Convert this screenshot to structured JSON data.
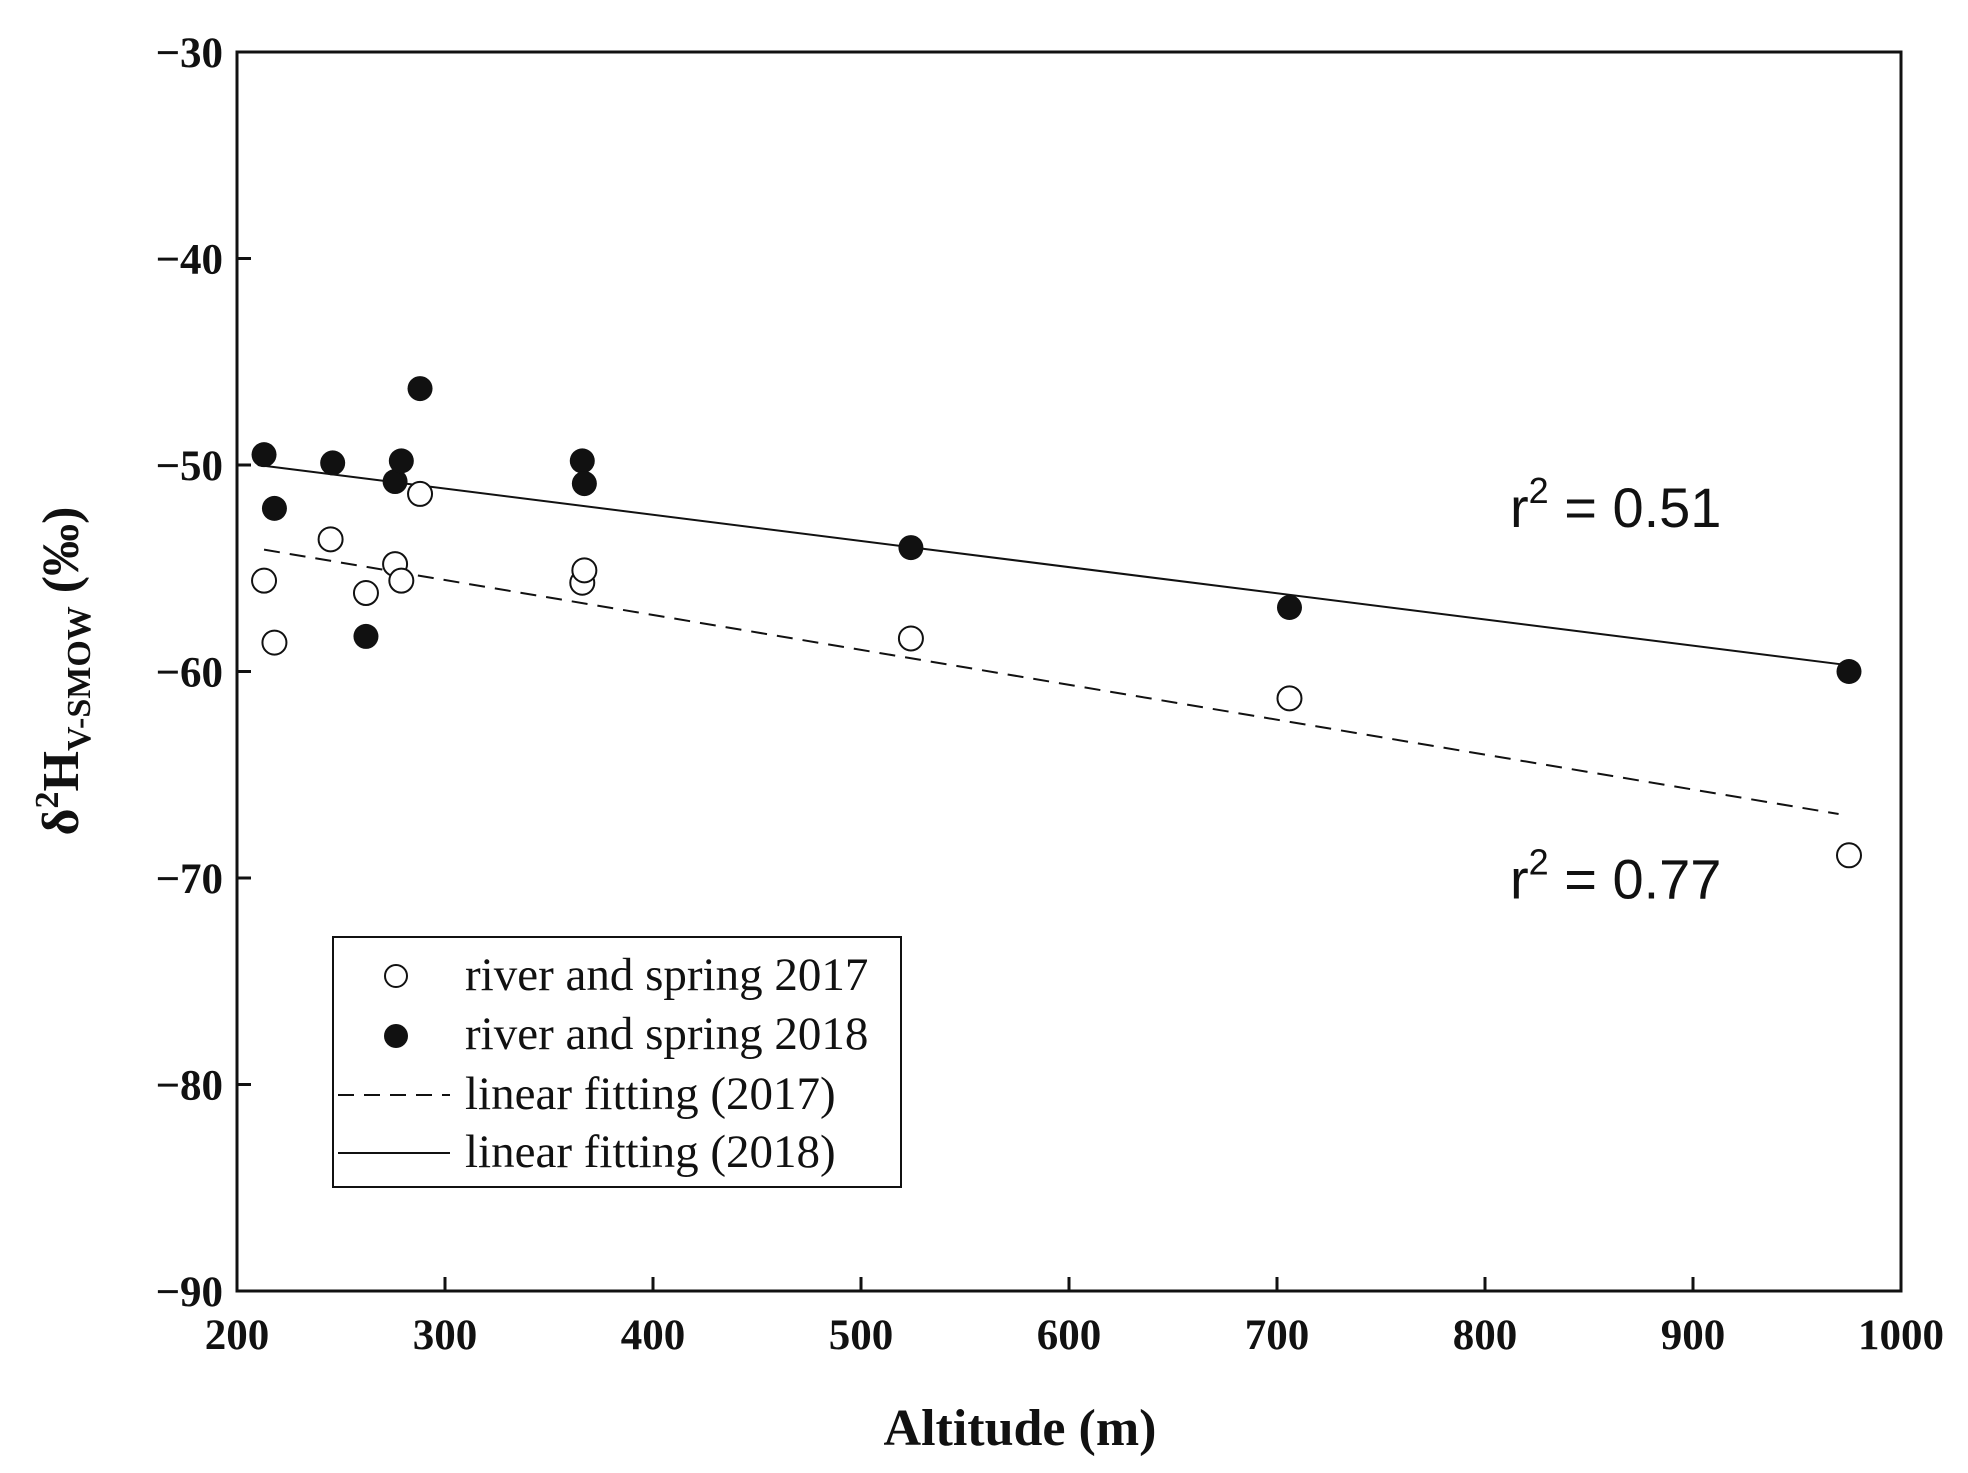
{
  "chart_data": {
    "type": "scatter",
    "title": "",
    "xlabel": "Altitude (m)",
    "ylabel": {
      "main": "δ",
      "sup": "2",
      "base": "H",
      "sub": "V-SMOW",
      "unit": " (‰)"
    },
    "xlim": [
      200,
      1000
    ],
    "ylim": [
      -90,
      -30
    ],
    "xticks": [
      200,
      300,
      400,
      500,
      600,
      700,
      800,
      900,
      1000
    ],
    "yticks": [
      -30,
      -40,
      -50,
      -60,
      -70,
      -80,
      -90
    ],
    "ytick_labels": [
      "−30",
      "−40",
      "−50",
      "−60",
      "−70",
      "−80",
      "−90"
    ],
    "legend_position": "bottom-left",
    "series": [
      {
        "name": "river and spring 2017",
        "marker": "open-circle",
        "points": [
          [
            213,
            -55.6
          ],
          [
            218,
            -58.6
          ],
          [
            245,
            -53.6
          ],
          [
            262,
            -56.2
          ],
          [
            276,
            -54.8
          ],
          [
            279,
            -55.6
          ],
          [
            288,
            -51.4
          ],
          [
            366,
            -55.7
          ],
          [
            367,
            -55.1
          ],
          [
            524,
            -58.4
          ],
          [
            706,
            -61.3
          ],
          [
            975,
            -68.9
          ]
        ]
      },
      {
        "name": "river and spring 2018",
        "marker": "filled-circle",
        "points": [
          [
            213,
            -49.5
          ],
          [
            218,
            -52.1
          ],
          [
            246,
            -49.9
          ],
          [
            262,
            -58.3
          ],
          [
            276,
            -50.8
          ],
          [
            279,
            -49.8
          ],
          [
            288,
            -46.3
          ],
          [
            366,
            -49.8
          ],
          [
            367,
            -50.9
          ],
          [
            524,
            -54.0
          ],
          [
            706,
            -56.9
          ],
          [
            975,
            -60.0
          ]
        ]
      },
      {
        "name": "linear fitting (2017)",
        "style": "dashed",
        "line": [
          [
            213,
            -54.1
          ],
          [
            970,
            -66.9
          ]
        ]
      },
      {
        "name": "linear fitting (2018)",
        "style": "solid",
        "line": [
          [
            210,
            -50.0
          ],
          [
            975,
            -59.7
          ]
        ]
      }
    ],
    "annotations": [
      {
        "label": "r",
        "sup": "2",
        "rest": " = 0.51",
        "anchor": [
          812,
          -53.0
        ]
      },
      {
        "label": "r",
        "sup": "2",
        "rest": " = 0.77",
        "anchor": [
          812,
          -71.0
        ]
      }
    ],
    "colors": {
      "axis": "#111111",
      "marker": "#111111"
    }
  }
}
